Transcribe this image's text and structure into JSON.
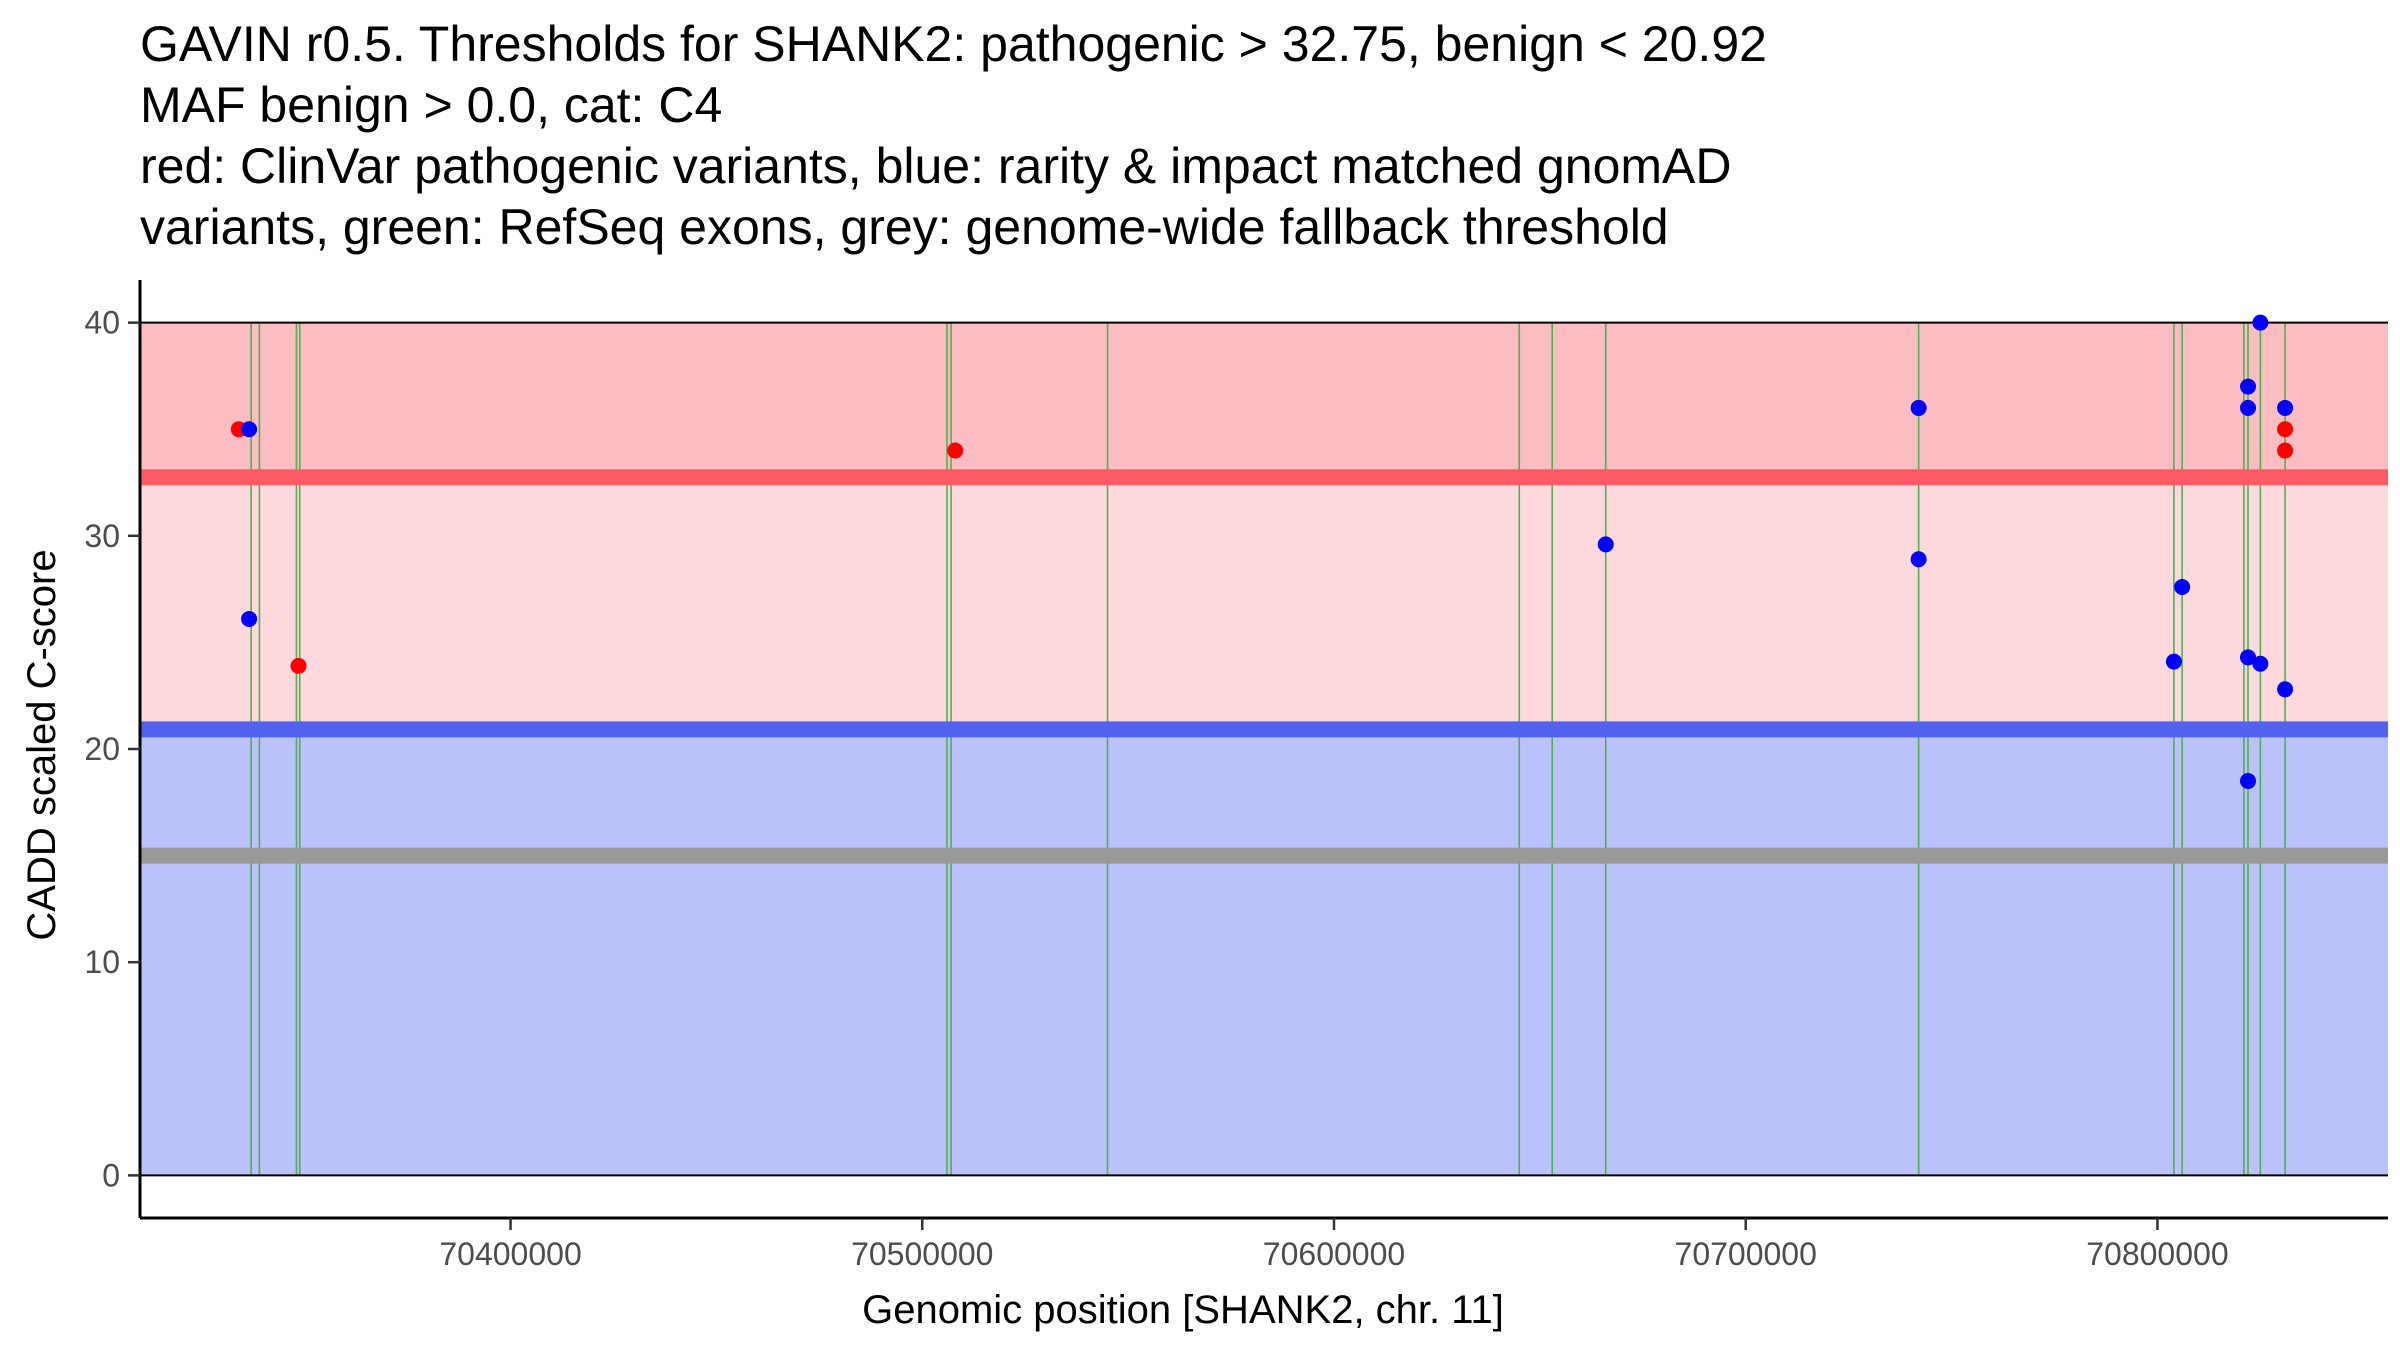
{
  "chart_data": {
    "type": "scatter",
    "title_lines": [
      "GAVIN r0.5. Thresholds for SHANK2: pathogenic > 32.75, benign < 20.92",
      "MAF benign > 0.0, cat: C4",
      "red: ClinVar pathogenic variants, blue: rarity & impact matched gnomAD",
      "variants, green: RefSeq exons, grey: genome-wide fallback threshold"
    ],
    "xlabel": "Genomic position [SHANK2, chr. 11]",
    "ylabel": "CADD scaled C-score",
    "xlim": [
      70310000,
      70856000
    ],
    "ylim": [
      -2,
      42
    ],
    "x_ticks": [
      70400000,
      70500000,
      70600000,
      70700000,
      70800000
    ],
    "x_tick_labels": [
      "70400000",
      "70500000",
      "70600000",
      "70700000",
      "70800000"
    ],
    "y_ticks": [
      0,
      10,
      20,
      30,
      40
    ],
    "y_tick_labels": [
      "0",
      "10",
      "20",
      "30",
      "40"
    ],
    "region_x_range": [
      70310000,
      70856000
    ],
    "regions": [
      {
        "name": "pathogenic-zone",
        "y_from": 32.75,
        "y_to": 40,
        "color": "#fbbcc2"
      },
      {
        "name": "uncertain-zone",
        "y_from": 20.92,
        "y_to": 32.75,
        "color": "#fdd8dd"
      },
      {
        "name": "benign-zone",
        "y_from": 0,
        "y_to": 20.92,
        "color": "#bbc1fa"
      }
    ],
    "thresholds": [
      {
        "name": "pathogenic-threshold",
        "value": 32.75,
        "color": "#ff5a66"
      },
      {
        "name": "benign-threshold",
        "value": 20.92,
        "color": "#5062ef"
      },
      {
        "name": "fallback-threshold",
        "value": 15,
        "color": "#999999"
      }
    ],
    "exons": [
      70337000,
      70339000,
      70348000,
      70348800,
      70506000,
      70507000,
      70545000,
      70645000,
      70653000,
      70666000,
      70742000,
      70804000,
      70806000,
      70821000,
      70822000,
      70825000,
      70831000
    ],
    "exon_color": "#4db34d",
    "series": [
      {
        "name": "ClinVar pathogenic variants",
        "color": "#ff0000",
        "points": [
          {
            "x": 70334000,
            "y": 35
          },
          {
            "x": 70508000,
            "y": 34
          },
          {
            "x": 70348500,
            "y": 23.9
          },
          {
            "x": 70831000,
            "y": 35
          },
          {
            "x": 70831000,
            "y": 34
          }
        ]
      },
      {
        "name": "rarity & impact matched gnomAD variants",
        "color": "#0000ff",
        "points": [
          {
            "x": 70336500,
            "y": 35
          },
          {
            "x": 70336500,
            "y": 26.1
          },
          {
            "x": 70666000,
            "y": 29.6
          },
          {
            "x": 70742000,
            "y": 36
          },
          {
            "x": 70742000,
            "y": 28.9
          },
          {
            "x": 70804000,
            "y": 24.1
          },
          {
            "x": 70806000,
            "y": 27.6
          },
          {
            "x": 70822000,
            "y": 37
          },
          {
            "x": 70822000,
            "y": 36
          },
          {
            "x": 70822000,
            "y": 24.3
          },
          {
            "x": 70822000,
            "y": 18.5
          },
          {
            "x": 70825000,
            "y": 40
          },
          {
            "x": 70825000,
            "y": 24
          },
          {
            "x": 70831000,
            "y": 36
          },
          {
            "x": 70831000,
            "y": 22.8
          }
        ]
      }
    ]
  }
}
